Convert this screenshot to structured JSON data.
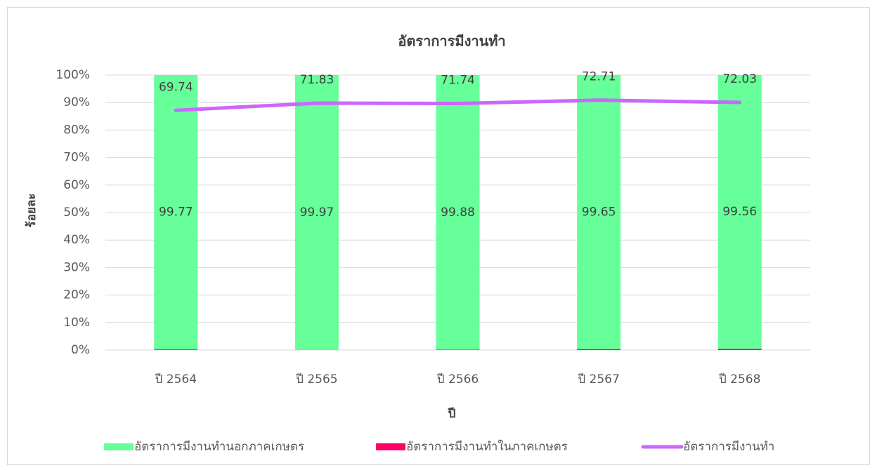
{
  "chart_data": {
    "type": "bar",
    "stacked": true,
    "title": "อัตราการมีงานทำ",
    "x_label": "ปี",
    "y_label": "ร้อยละ",
    "categories": [
      "ปี 2564",
      "ปี 2565",
      "ปี 2566",
      "ปี 2567",
      "ปี 2568"
    ],
    "ylim": [
      0,
      100
    ],
    "yticks": [
      {
        "value": 0,
        "label": "0%"
      },
      {
        "value": 10,
        "label": "10%"
      },
      {
        "value": 20,
        "label": "20%"
      },
      {
        "value": 30,
        "label": "30%"
      },
      {
        "value": 40,
        "label": "40%"
      },
      {
        "value": 50,
        "label": "50%"
      },
      {
        "value": 60,
        "label": "60%"
      },
      {
        "value": 70,
        "label": "70%"
      },
      {
        "value": 80,
        "label": "80%"
      },
      {
        "value": 90,
        "label": "90%"
      },
      {
        "value": 100,
        "label": "100%"
      }
    ],
    "y2lim": [
      0,
      80
    ],
    "grid": true,
    "legend": "bottom",
    "series": [
      {
        "name": "อัตราการมีงานทำนอกภาคเกษตร",
        "type": "bar",
        "color": "#66ff99",
        "values": [
          99.77,
          99.97,
          99.88,
          99.65,
          99.56
        ]
      },
      {
        "name": "อัตราการมีงานทำในภาคเกษตร",
        "type": "bar",
        "color": "#ff0066",
        "values": [
          0.23,
          0.03,
          0.12,
          0.35,
          0.44
        ]
      },
      {
        "name": "อัตราการมีงานทำ",
        "type": "line",
        "axis": "y2",
        "color": "#cc66ff",
        "values": [
          69.74,
          71.83,
          71.74,
          72.71,
          72.03
        ]
      }
    ]
  }
}
